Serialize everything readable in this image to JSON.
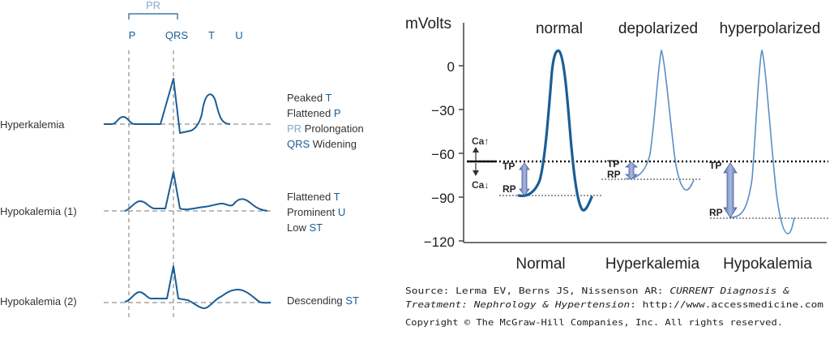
{
  "left_panel": {
    "pr_label": "PR",
    "wave_labels": {
      "p": "P",
      "qrs": "QRS",
      "t": "T",
      "u": "U"
    },
    "rows": [
      {
        "name": "Hyperkalemia",
        "notes": [
          {
            "pre": "Peaked ",
            "hl": "T",
            "hl_color": "#1a5e96",
            "post": ""
          },
          {
            "pre": "Flattened ",
            "hl": "P",
            "hl_color": "#1a5e96",
            "post": ""
          },
          {
            "pre": "",
            "hl": "PR",
            "hl_color": "#86a8cc",
            "post": " Prolongation"
          },
          {
            "pre": "",
            "hl": "QRS",
            "hl_color": "#1a5e96",
            "post": " Widening"
          }
        ]
      },
      {
        "name": "Hypokalemia (1)",
        "notes": [
          {
            "pre": "Flattened ",
            "hl": "T",
            "hl_color": "#1a5e96",
            "post": ""
          },
          {
            "pre": "Prominent ",
            "hl": "U",
            "hl_color": "#1a5e96",
            "post": ""
          },
          {
            "pre": "Low ",
            "hl": "ST",
            "hl_color": "#1a5e96",
            "post": ""
          }
        ]
      },
      {
        "name": "Hypokalemia (2)",
        "notes": [
          {
            "pre": "Descending ",
            "hl": "ST",
            "hl_color": "#1a5e96",
            "post": ""
          }
        ]
      }
    ]
  },
  "right_panel": {
    "y_axis_label": "mVolts",
    "y_ticks": [
      "0",
      "−30",
      "−60",
      "−90",
      "−120"
    ],
    "curves": [
      {
        "top_label": "normal",
        "bottom_label": "Normal"
      },
      {
        "top_label": "depolarized",
        "bottom_label": "Hyperkalemia"
      },
      {
        "top_label": "hyperpolarized",
        "bottom_label": "Hypokalemia"
      }
    ],
    "tp_label": "TP",
    "rp_label": "RP",
    "ca_up": "Ca↑",
    "ca_down": "Ca↓"
  },
  "credits": {
    "source_prefix": "Source: Lerma EV, Berns JS, Nissenson AR: ",
    "source_italic_1": "CURRENT Diagnosis &",
    "source_italic_2": "Treatment: Nephrology & Hypertension",
    "source_url": ": http://www.accessmedicine.com",
    "copyright": "Copyright © The McGraw-Hill Companies, Inc. All rights reserved."
  },
  "colors": {
    "ecg_blue": "#1a5e96",
    "light_blue": "#86a8cc",
    "axis_gray": "#444444",
    "arrow_fill": "#7f93c9"
  }
}
